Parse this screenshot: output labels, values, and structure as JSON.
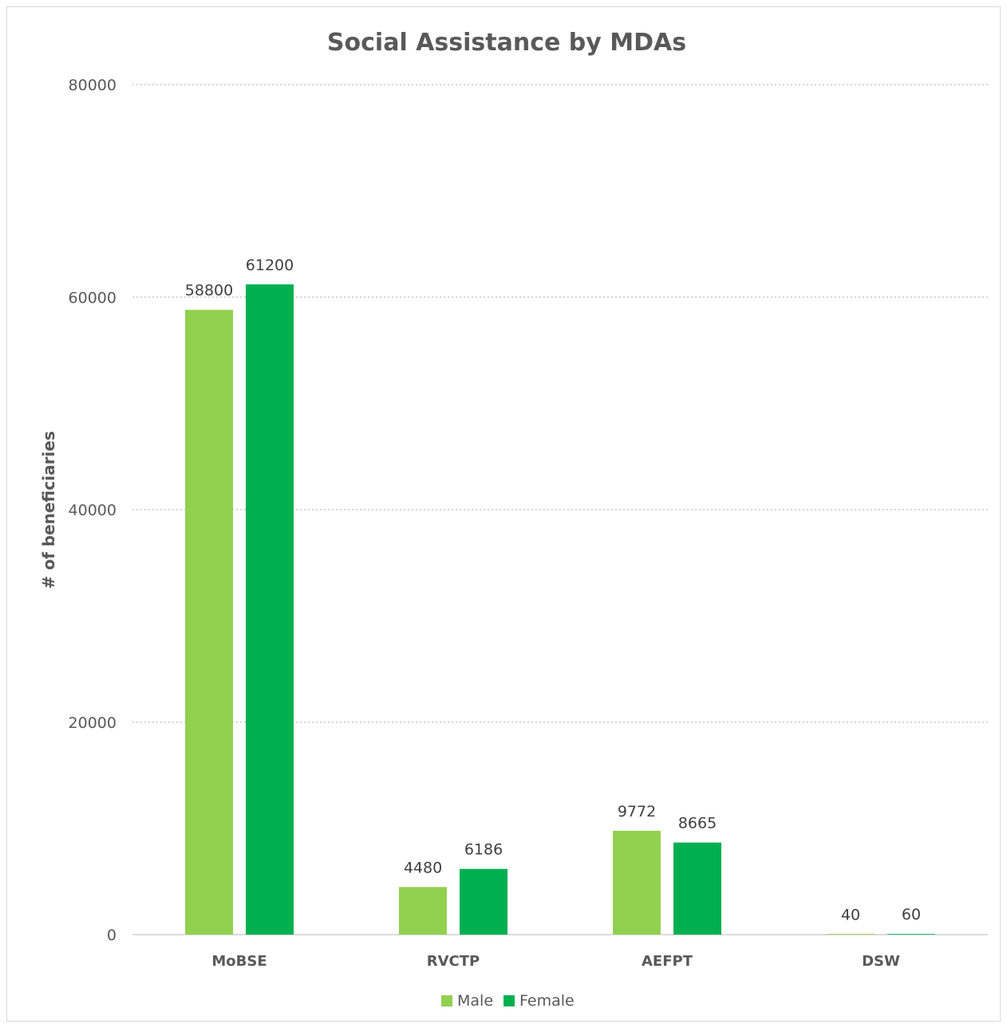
{
  "chart_data": {
    "type": "bar",
    "title": "Social Assistance by MDAs",
    "xlabel": "",
    "ylabel": "# of beneficiaries",
    "categories": [
      "MoBSE",
      "RVCTP",
      "AEFPT",
      "DSW"
    ],
    "series": [
      {
        "name": "Male",
        "color": "#92d050",
        "values": [
          58800,
          4480,
          9772,
          40
        ]
      },
      {
        "name": "Female",
        "color": "#00b050",
        "values": [
          61200,
          6186,
          8665,
          60
        ]
      }
    ],
    "ylim": [
      0,
      80000
    ],
    "yticks": [
      0,
      20000,
      40000,
      60000,
      80000
    ],
    "grid": true,
    "legend_position": "bottom",
    "data_labels": true
  }
}
